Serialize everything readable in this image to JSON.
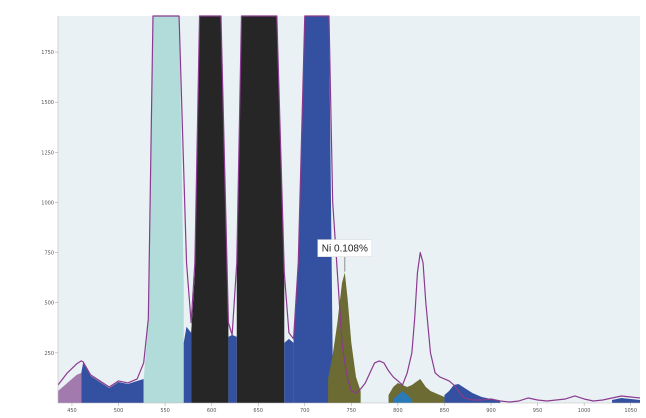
{
  "chart_data": {
    "type": "area",
    "title": "",
    "xlabel": "",
    "ylabel": "",
    "xlim": [
      435,
      1060
    ],
    "ylim": [
      0,
      1930
    ],
    "grid": false,
    "x_ticks": [
      450,
      500,
      550,
      600,
      650,
      700,
      750,
      800,
      850,
      900,
      950,
      1000,
      1050
    ],
    "y_ticks": [
      250,
      500,
      750,
      1000,
      1250,
      1500,
      1750
    ],
    "colors": {
      "plot_background": "#eaf1f5",
      "outline": "#8a3b8f",
      "pale_teal": "#b2dcda",
      "black": "#262626",
      "blue": "#3450a0",
      "olive": "#6b6b33",
      "sky": "#2a7ab8",
      "purple": "#a37aae"
    },
    "outline_series": {
      "x": [
        435,
        445,
        455,
        460,
        462,
        470,
        480,
        490,
        500,
        510,
        520,
        527,
        532,
        537,
        545,
        555,
        565,
        573,
        578,
        582,
        587,
        592,
        600,
        610,
        618,
        622,
        627,
        632,
        640,
        650,
        660,
        670,
        678,
        683,
        688,
        693,
        700,
        710,
        720,
        726,
        730,
        735,
        740,
        743,
        746,
        750,
        755,
        760,
        765,
        770,
        775,
        780,
        785,
        790,
        795,
        800,
        805,
        810,
        815,
        818,
        821,
        824,
        827,
        830,
        835,
        840,
        845,
        850,
        855,
        860,
        865,
        870,
        875,
        880,
        890,
        900,
        910,
        920,
        930,
        940,
        950,
        960,
        970,
        980,
        990,
        1000,
        1010,
        1020,
        1030,
        1040,
        1050,
        1060
      ],
      "y": [
        90,
        150,
        195,
        210,
        205,
        140,
        110,
        80,
        110,
        100,
        120,
        200,
        420,
        1930,
        1930,
        1930,
        1930,
        700,
        400,
        700,
        1930,
        1930,
        1930,
        1930,
        400,
        340,
        700,
        1930,
        1930,
        1930,
        1930,
        1930,
        650,
        350,
        320,
        700,
        1930,
        1930,
        1930,
        1930,
        1000,
        650,
        300,
        200,
        120,
        60,
        50,
        70,
        100,
        150,
        200,
        210,
        200,
        160,
        130,
        110,
        90,
        150,
        250,
        420,
        650,
        750,
        700,
        500,
        250,
        150,
        130,
        120,
        110,
        90,
        60,
        30,
        20,
        15,
        15,
        20,
        10,
        5,
        10,
        25,
        15,
        10,
        15,
        20,
        35,
        20,
        10,
        15,
        25,
        35,
        30,
        25
      ]
    },
    "filled_regions": [
      {
        "color_key": "purple",
        "x": [
          435,
          445,
          455,
          460
        ],
        "y": [
          60,
          100,
          140,
          150
        ]
      },
      {
        "color_key": "blue",
        "x": [
          460,
          462,
          470,
          480,
          490,
          500,
          510,
          520,
          527
        ],
        "y": [
          150,
          200,
          135,
          105,
          75,
          105,
          95,
          110,
          120
        ]
      },
      {
        "color_key": "pale_teal",
        "x": [
          527,
          532,
          537,
          545,
          555,
          565,
          570
        ],
        "y": [
          120,
          400,
          1930,
          1930,
          1930,
          1930,
          600
        ]
      },
      {
        "color_key": "blue",
        "x": [
          570,
          573,
          578
        ],
        "y": [
          300,
          380,
          350
        ]
      },
      {
        "color_key": "black",
        "x": [
          578,
          582,
          587,
          592,
          600,
          610,
          618
        ],
        "y": [
          350,
          650,
          1930,
          1930,
          1930,
          1930,
          400
        ]
      },
      {
        "color_key": "blue",
        "x": [
          618,
          622,
          627
        ],
        "y": [
          330,
          340,
          330
        ]
      },
      {
        "color_key": "black",
        "x": [
          627,
          632,
          640,
          650,
          660,
          670,
          678
        ],
        "y": [
          650,
          1930,
          1930,
          1930,
          1930,
          1930,
          600
        ]
      },
      {
        "color_key": "blue",
        "x": [
          678,
          683,
          688
        ],
        "y": [
          300,
          320,
          300
        ]
      },
      {
        "color_key": "blue",
        "x": [
          688,
          693,
          700,
          710,
          720,
          726,
          730
        ],
        "y": [
          320,
          680,
          1930,
          1930,
          1930,
          1930,
          220
        ]
      },
      {
        "color_key": "olive",
        "x": [
          725,
          730,
          735,
          740,
          743,
          746,
          750,
          755,
          760
        ],
        "y": [
          120,
          240,
          400,
          600,
          650,
          520,
          300,
          130,
          60
        ]
      },
      {
        "color_key": "olive",
        "x": [
          790,
          795,
          800,
          805,
          810,
          815,
          818,
          821,
          824,
          827,
          830,
          835,
          840,
          845,
          850
        ],
        "y": [
          40,
          80,
          100,
          90,
          80,
          90,
          100,
          110,
          120,
          100,
          80,
          60,
          50,
          40,
          30
        ]
      },
      {
        "color_key": "sky",
        "x": [
          795,
          800,
          805,
          810,
          815
        ],
        "y": [
          20,
          40,
          60,
          40,
          20
        ]
      },
      {
        "color_key": "blue",
        "x": [
          850,
          855,
          860,
          865,
          870,
          880,
          890,
          900,
          910
        ],
        "y": [
          40,
          60,
          90,
          95,
          80,
          50,
          30,
          20,
          10
        ]
      },
      {
        "color_key": "blue",
        "x": [
          1030,
          1040,
          1050,
          1060
        ],
        "y": [
          15,
          25,
          20,
          15
        ]
      }
    ],
    "annotations": [
      {
        "text": "Ni 0.108%",
        "x": 743,
        "y": 650
      }
    ]
  }
}
